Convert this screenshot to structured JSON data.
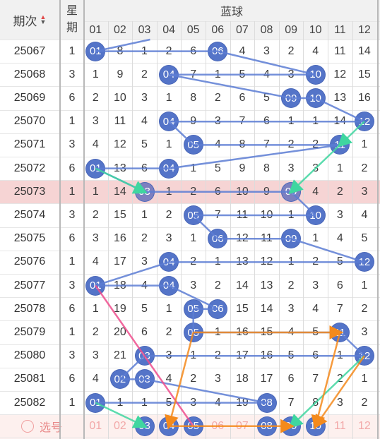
{
  "header": {
    "period_label": "期次",
    "weekday_label": "星期",
    "section_label": "蓝球",
    "columns": [
      "01",
      "02",
      "03",
      "04",
      "05",
      "06",
      "07",
      "08",
      "09",
      "10",
      "11",
      "12"
    ]
  },
  "colors": {
    "ball": "#5474c8",
    "ball_highlight": "#7d7fbf",
    "line": "#5c7dd4",
    "arrow_green": "#3fd6a0",
    "arrow_orange": "#f48a1c",
    "arrow_pink": "#ee4d8d",
    "highlight_row": "#f6d4d4",
    "select_row": "#fdf0ee",
    "sort_up": "#e04a4a",
    "sort_down": "#555555"
  },
  "rows": [
    {
      "period": "25067",
      "weekday": "1",
      "cells": [
        "01",
        "8",
        "1",
        "2",
        "6",
        "06",
        "4",
        "3",
        "2",
        "4",
        "11",
        "14"
      ],
      "hits": [
        1,
        6
      ]
    },
    {
      "period": "25068",
      "weekday": "3",
      "cells": [
        "1",
        "9",
        "2",
        "04",
        "7",
        "1",
        "5",
        "4",
        "3",
        "10",
        "12",
        "15"
      ],
      "hits": [
        4,
        10
      ]
    },
    {
      "period": "25069",
      "weekday": "6",
      "cells": [
        "2",
        "10",
        "3",
        "1",
        "8",
        "2",
        "6",
        "5",
        "09",
        "10",
        "13",
        "16"
      ],
      "hits": [
        9,
        10
      ]
    },
    {
      "period": "25070",
      "weekday": "1",
      "cells": [
        "3",
        "11",
        "4",
        "04",
        "9",
        "3",
        "7",
        "6",
        "1",
        "1",
        "14",
        "12"
      ],
      "hits": [
        4,
        12
      ]
    },
    {
      "period": "25071",
      "weekday": "3",
      "cells": [
        "4",
        "12",
        "5",
        "1",
        "05",
        "4",
        "8",
        "7",
        "2",
        "2",
        "11",
        "1"
      ],
      "hits": [
        5,
        11
      ]
    },
    {
      "period": "25072",
      "weekday": "6",
      "cells": [
        "01",
        "13",
        "6",
        "04",
        "1",
        "5",
        "9",
        "8",
        "3",
        "3",
        "1",
        "2"
      ],
      "hits": [
        1,
        4
      ]
    },
    {
      "period": "25073",
      "weekday": "1",
      "cells": [
        "1",
        "14",
        "03",
        "1",
        "2",
        "6",
        "10",
        "9",
        "09",
        "4",
        "2",
        "3"
      ],
      "hits": [
        3,
        9
      ],
      "highlight": true
    },
    {
      "period": "25074",
      "weekday": "3",
      "cells": [
        "2",
        "15",
        "1",
        "2",
        "05",
        "7",
        "11",
        "10",
        "1",
        "10",
        "3",
        "4"
      ],
      "hits": [
        5,
        10
      ]
    },
    {
      "period": "25075",
      "weekday": "6",
      "cells": [
        "3",
        "16",
        "2",
        "3",
        "1",
        "06",
        "12",
        "11",
        "09",
        "1",
        "4",
        "5"
      ],
      "hits": [
        6,
        9
      ]
    },
    {
      "period": "25076",
      "weekday": "1",
      "cells": [
        "4",
        "17",
        "3",
        "04",
        "2",
        "1",
        "13",
        "12",
        "1",
        "2",
        "5",
        "12"
      ],
      "hits": [
        4,
        12
      ]
    },
    {
      "period": "25077",
      "weekday": "3",
      "cells": [
        "01",
        "18",
        "4",
        "04",
        "3",
        "2",
        "14",
        "13",
        "2",
        "3",
        "6",
        "1"
      ],
      "hits": [
        1,
        4
      ]
    },
    {
      "period": "25078",
      "weekday": "6",
      "cells": [
        "1",
        "19",
        "5",
        "1",
        "05",
        "06",
        "15",
        "14",
        "3",
        "4",
        "7",
        "2"
      ],
      "hits": [
        5,
        6
      ]
    },
    {
      "period": "25079",
      "weekday": "1",
      "cells": [
        "2",
        "20",
        "6",
        "2",
        "05",
        "1",
        "16",
        "15",
        "4",
        "5",
        "11",
        "3"
      ],
      "hits": [
        5,
        11
      ]
    },
    {
      "period": "25080",
      "weekday": "3",
      "cells": [
        "3",
        "21",
        "03",
        "3",
        "1",
        "2",
        "17",
        "16",
        "5",
        "6",
        "1",
        "12"
      ],
      "hits": [
        3,
        12
      ]
    },
    {
      "period": "25081",
      "weekday": "6",
      "cells": [
        "4",
        "02",
        "03",
        "4",
        "2",
        "3",
        "18",
        "17",
        "6",
        "7",
        "2",
        "1"
      ],
      "hits": [
        2,
        3
      ]
    },
    {
      "period": "25082",
      "weekday": "1",
      "cells": [
        "01",
        "1",
        "1",
        "5",
        "3",
        "4",
        "19",
        "08",
        "7",
        "8",
        "3",
        "2"
      ],
      "hits": [
        1,
        8
      ]
    }
  ],
  "select_row": {
    "label": "选号",
    "cells": [
      "01",
      "02",
      "03",
      "04",
      "05",
      "06",
      "07",
      "08",
      "09",
      "10",
      "11",
      "12"
    ],
    "picked": [
      3,
      4,
      5,
      8,
      9,
      10
    ]
  }
}
